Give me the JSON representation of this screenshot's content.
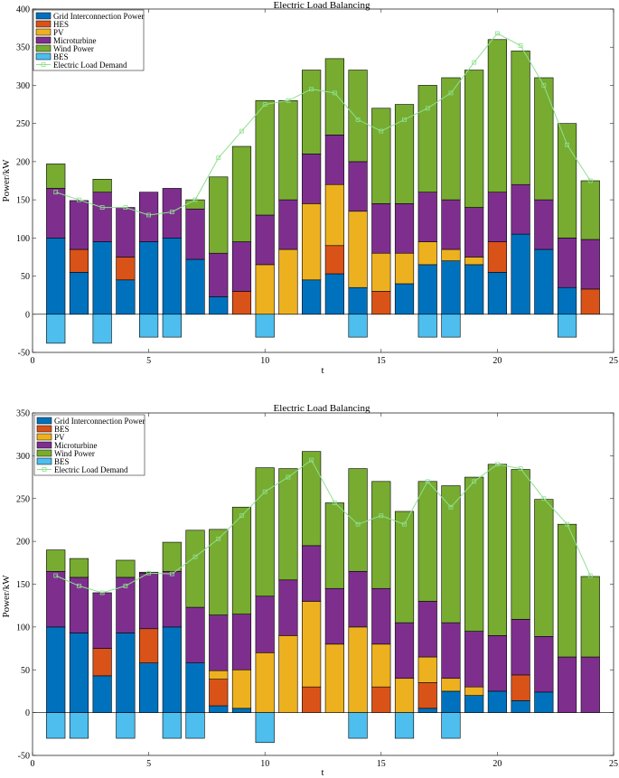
{
  "colors": {
    "grid": "#0072BD",
    "hes": "#D95319",
    "pv": "#EDB120",
    "micro": "#7E2F8E",
    "wind": "#77AC30",
    "bes": "#4DBEEE",
    "demand": "#8FE08F"
  },
  "chart_data": [
    {
      "type": "bar",
      "stacked": true,
      "title": "Electric Load Balancing",
      "xlabel": "t",
      "ylabel": "Power/kW",
      "xlim": [
        0,
        25
      ],
      "ylim": [
        -50,
        400
      ],
      "xticks": [
        "0",
        "5",
        "10",
        "15",
        "20",
        "25"
      ],
      "yticks": [
        "-50",
        "0",
        "50",
        "100",
        "150",
        "200",
        "250",
        "300",
        "350",
        "400"
      ],
      "legend_position": "top-left",
      "x": [
        1,
        2,
        3,
        4,
        5,
        6,
        7,
        8,
        9,
        10,
        11,
        12,
        13,
        14,
        15,
        16,
        17,
        18,
        19,
        20,
        21,
        22,
        23,
        24
      ],
      "series": [
        {
          "name": "Grid Interconnection Power",
          "color_key": "grid",
          "values": [
            100,
            55,
            95,
            45,
            95,
            100,
            72,
            23,
            0,
            0,
            0,
            45,
            53,
            35,
            0,
            40,
            65,
            70,
            65,
            55,
            105,
            85,
            35,
            0
          ]
        },
        {
          "name": "HES",
          "color_key": "hes",
          "values": [
            0,
            30,
            0,
            30,
            0,
            0,
            0,
            0,
            30,
            0,
            0,
            0,
            37,
            0,
            30,
            0,
            0,
            0,
            0,
            40,
            0,
            0,
            0,
            33
          ]
        },
        {
          "name": "PV",
          "color_key": "pv",
          "values": [
            0,
            0,
            0,
            0,
            0,
            0,
            0,
            0,
            0,
            65,
            85,
            100,
            80,
            100,
            50,
            40,
            30,
            15,
            10,
            0,
            0,
            0,
            0,
            0
          ]
        },
        {
          "name": "Microturbine",
          "color_key": "micro",
          "values": [
            65,
            64,
            65,
            65,
            65,
            65,
            66,
            57,
            65,
            65,
            65,
            65,
            65,
            65,
            65,
            65,
            65,
            65,
            65,
            65,
            65,
            65,
            65,
            65
          ]
        },
        {
          "name": "Wind Power",
          "color_key": "wind",
          "values": [
            32,
            0,
            17,
            0,
            0,
            0,
            12,
            100,
            125,
            150,
            130,
            110,
            100,
            120,
            125,
            130,
            140,
            160,
            180,
            200,
            175,
            160,
            150,
            77
          ]
        },
        {
          "name": "BES",
          "color_key": "bes",
          "values": [
            -38,
            0,
            -38,
            0,
            -30,
            -30,
            0,
            0,
            0,
            -30,
            0,
            0,
            0,
            -30,
            0,
            0,
            -30,
            -30,
            0,
            0,
            0,
            0,
            -30,
            0
          ]
        }
      ],
      "demand": {
        "name": "Electric Load Demand",
        "color_key": "demand",
        "values": [
          160,
          150,
          140,
          140,
          130,
          134,
          150,
          205,
          240,
          275,
          280,
          295,
          290,
          255,
          240,
          255,
          270,
          290,
          330,
          368,
          352,
          300,
          222,
          175
        ]
      }
    },
    {
      "type": "bar",
      "stacked": true,
      "title": "Electric Load Balancing",
      "xlabel": "t",
      "ylabel": "Power/kW",
      "xlim": [
        0,
        25
      ],
      "ylim": [
        -50,
        350
      ],
      "xticks": [
        "0",
        "5",
        "10",
        "15",
        "20",
        "25"
      ],
      "yticks": [
        "-50",
        "0",
        "50",
        "100",
        "150",
        "200",
        "250",
        "300",
        "350"
      ],
      "legend_position": "top-left",
      "x": [
        1,
        2,
        3,
        4,
        5,
        6,
        7,
        8,
        9,
        10,
        11,
        12,
        13,
        14,
        15,
        16,
        17,
        18,
        19,
        20,
        21,
        22,
        23,
        24
      ],
      "series": [
        {
          "name": "Grid Interconnection Power",
          "color_key": "grid",
          "values": [
            100,
            93,
            43,
            93,
            58,
            100,
            58,
            8,
            5,
            0,
            0,
            0,
            0,
            0,
            0,
            0,
            5,
            25,
            20,
            25,
            14,
            24,
            0,
            0
          ]
        },
        {
          "name": "BES",
          "color_key": "hes",
          "values": [
            0,
            0,
            32,
            0,
            40,
            0,
            0,
            31,
            0,
            0,
            0,
            30,
            0,
            0,
            30,
            0,
            30,
            0,
            0,
            0,
            30,
            0,
            0,
            0
          ]
        },
        {
          "name": "PV",
          "color_key": "pv",
          "values": [
            0,
            0,
            0,
            0,
            0,
            0,
            0,
            10,
            45,
            70,
            90,
            100,
            80,
            100,
            50,
            40,
            30,
            15,
            10,
            0,
            0,
            0,
            0,
            0
          ]
        },
        {
          "name": "Microturbine",
          "color_key": "micro",
          "values": [
            65,
            65,
            65,
            65,
            65,
            65,
            65,
            65,
            65,
            66,
            65,
            65,
            65,
            65,
            65,
            65,
            65,
            65,
            65,
            65,
            65,
            65,
            65,
            65
          ]
        },
        {
          "name": "Wind Power",
          "color_key": "wind",
          "values": [
            25,
            22,
            0,
            20,
            1,
            34,
            90,
            100,
            125,
            150,
            130,
            110,
            100,
            120,
            125,
            130,
            140,
            160,
            180,
            200,
            175,
            160,
            155,
            94
          ]
        },
        {
          "name": "BES",
          "color_key": "bes",
          "values": [
            -30,
            -30,
            0,
            -30,
            0,
            -30,
            -30,
            0,
            0,
            -35,
            0,
            0,
            0,
            -30,
            0,
            -30,
            0,
            -30,
            0,
            0,
            0,
            0,
            0,
            0
          ]
        }
      ],
      "demand": {
        "name": "Electric Load Demand",
        "color_key": "demand",
        "values": [
          160,
          148,
          140,
          148,
          163,
          162,
          182,
          203,
          230,
          258,
          275,
          295,
          245,
          220,
          230,
          220,
          270,
          240,
          270,
          290,
          285,
          250,
          220,
          160
        ]
      }
    }
  ]
}
